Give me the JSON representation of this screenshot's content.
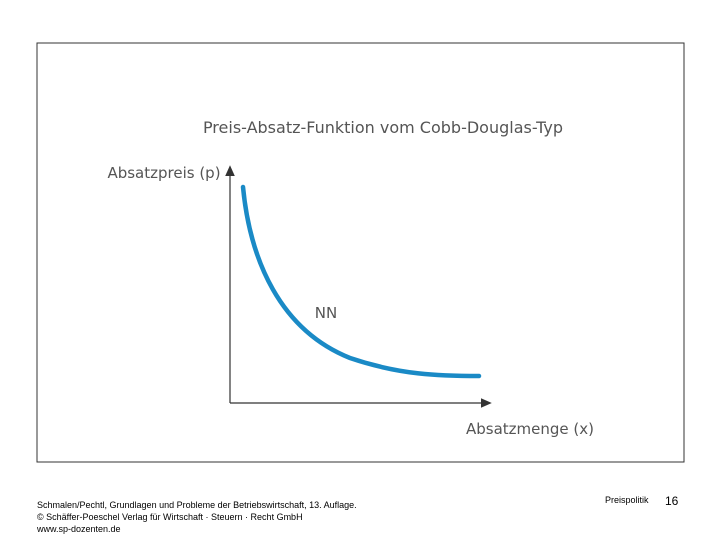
{
  "diagram": {
    "title": "Preis-Absatz-Funktion vom Cobb-Douglas-Typ",
    "y_axis_label": "Absatzpreis (p)",
    "x_axis_label": "Absatzmenge (x)",
    "curve_label": "NN"
  },
  "footer": {
    "source_lines": [
      "Schmalen/Pechtl, Grundlagen und Probleme der Betriebswirtschaft, 13. Auflage.",
      "© Schäffer-Poeschel Verlag für Wirtschaft · Steuern · Recht GmbH",
      "www.sp-dozenten.de"
    ],
    "section": "Preispolitik",
    "page_number": "16"
  }
}
